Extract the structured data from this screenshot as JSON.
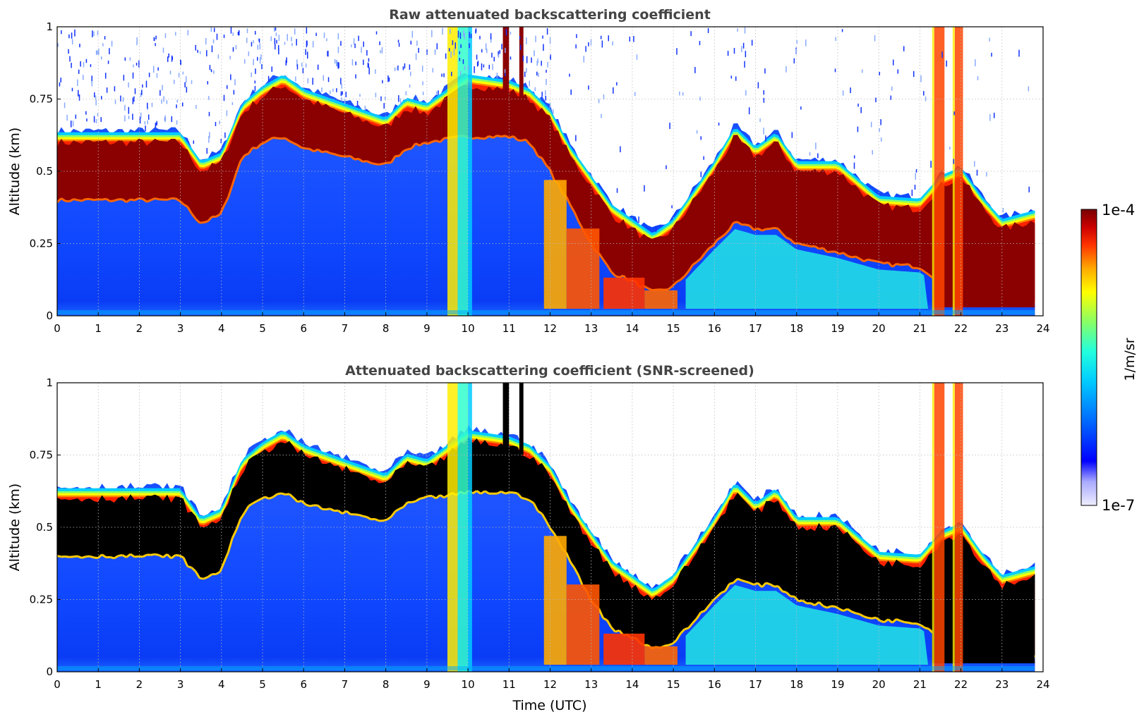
{
  "chart_data": [
    {
      "type": "heatmap",
      "title": "Raw attenuated backscattering coefficient",
      "xlabel": "",
      "ylabel": "Altitude (km)",
      "xlim": [
        0,
        24
      ],
      "ylim": [
        0,
        1
      ],
      "x_ticks": [
        "0",
        "1",
        "2",
        "3",
        "4",
        "5",
        "6",
        "7",
        "8",
        "9",
        "10",
        "11",
        "12",
        "13",
        "14",
        "15",
        "16",
        "17",
        "18",
        "19",
        "20",
        "21",
        "22",
        "23",
        "24"
      ],
      "y_ticks": [
        "0",
        "0.25",
        "0.5",
        "0.75",
        "1"
      ],
      "grid": true,
      "layer_profile": {
        "time_utc": [
          0,
          1,
          2,
          3,
          3.5,
          4,
          4.5,
          5,
          5.5,
          6,
          7,
          8,
          8.5,
          9,
          10,
          11,
          11.5,
          12,
          12.5,
          13,
          13.5,
          14,
          14.5,
          15,
          16,
          16.5,
          17,
          17.5,
          18,
          19,
          20,
          21,
          21.5,
          22,
          22.5,
          23,
          23.8
        ],
        "layer_top_km": [
          0.6,
          0.6,
          0.6,
          0.6,
          0.5,
          0.53,
          0.7,
          0.76,
          0.8,
          0.75,
          0.7,
          0.65,
          0.72,
          0.7,
          0.8,
          0.78,
          0.75,
          0.68,
          0.55,
          0.45,
          0.35,
          0.3,
          0.25,
          0.3,
          0.5,
          0.62,
          0.55,
          0.6,
          0.5,
          0.5,
          0.38,
          0.37,
          0.45,
          0.48,
          0.38,
          0.3,
          0.33
        ],
        "layer_bottom_km": [
          0.4,
          0.4,
          0.4,
          0.4,
          0.32,
          0.35,
          0.55,
          0.6,
          0.62,
          0.58,
          0.55,
          0.52,
          0.58,
          0.6,
          0.62,
          0.62,
          0.6,
          0.5,
          0.38,
          0.25,
          0.15,
          0.12,
          0.08,
          0.1,
          0.25,
          0.32,
          0.3,
          0.3,
          0.25,
          0.22,
          0.18,
          0.17,
          0.12,
          0.05,
          0.04,
          0.05,
          0.05
        ]
      }
    },
    {
      "type": "heatmap",
      "title": "Attenuated backscattering coefficient (SNR-screened)",
      "xlabel": "Time (UTC)",
      "ylabel": "Altitude (km)",
      "xlim": [
        0,
        24
      ],
      "ylim": [
        0,
        1
      ],
      "x_ticks": [
        "0",
        "1",
        "2",
        "3",
        "4",
        "5",
        "6",
        "7",
        "8",
        "9",
        "10",
        "11",
        "12",
        "13",
        "14",
        "15",
        "16",
        "17",
        "18",
        "19",
        "20",
        "21",
        "22",
        "23",
        "24"
      ],
      "y_ticks": [
        "0",
        "0.25",
        "0.5",
        "0.75",
        "1"
      ],
      "grid": true
    }
  ],
  "colorbar": {
    "unit_label": "1/m/sr",
    "min_label": "1e-7",
    "max_label": "1e-4",
    "scale": "log",
    "colors": [
      "#eeeeff",
      "#aaaaff",
      "#0000ff",
      "#0066ff",
      "#00ccff",
      "#22ffdd",
      "#88ff66",
      "#ffff00",
      "#ffaa00",
      "#ff3300",
      "#cc0000",
      "#770000"
    ]
  },
  "palette": {
    "background_blue": "#1a4bff",
    "layer_core": "#8b0000",
    "screened_core": "#000000"
  }
}
